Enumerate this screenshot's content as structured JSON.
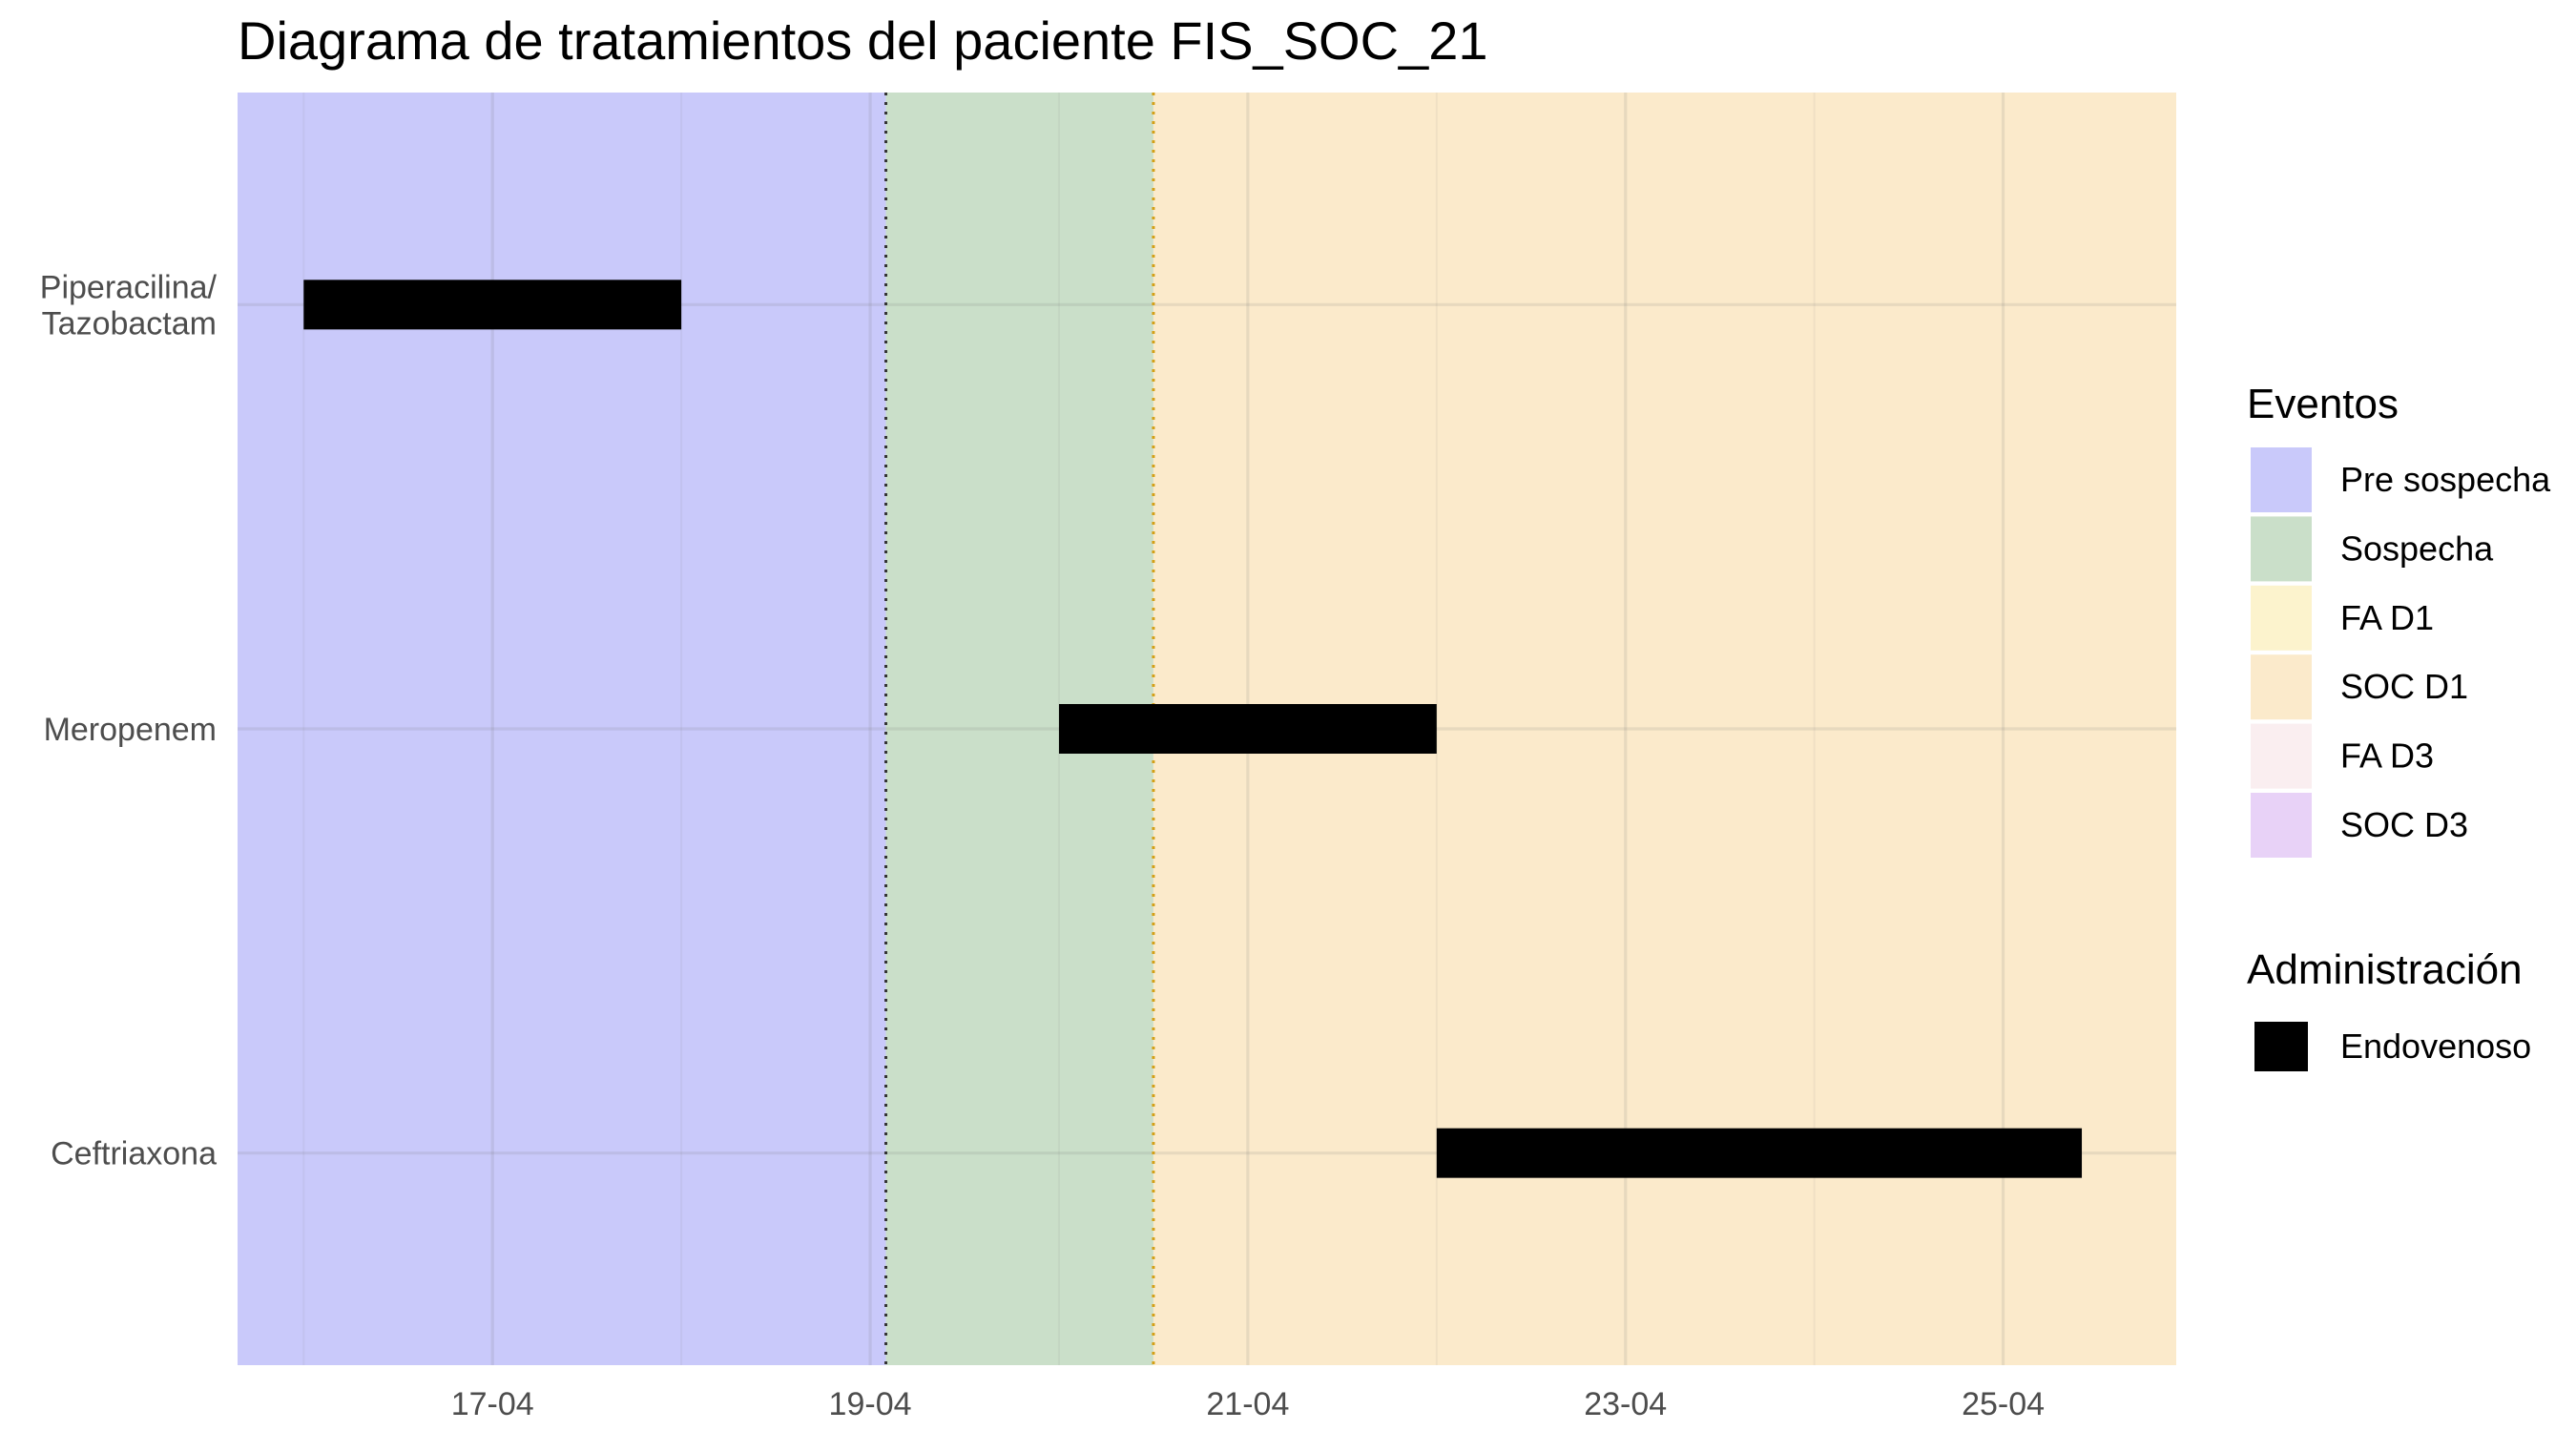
{
  "chart_data": {
    "type": "gantt",
    "title": "Diagrama de tratamientos del paciente FIS_SOC_21",
    "xlabel": "",
    "ylabel": "",
    "x_axis": {
      "range": [
        "2024-04-15T15:36",
        "2024-04-25T22:00"
      ],
      "ticks": [
        {
          "date": "2024-04-17",
          "label": "17-04"
        },
        {
          "date": "2024-04-19",
          "label": "19-04"
        },
        {
          "date": "2024-04-21",
          "label": "21-04"
        },
        {
          "date": "2024-04-23",
          "label": "23-04"
        },
        {
          "date": "2024-04-25",
          "label": "25-04"
        }
      ]
    },
    "categories": [
      "Piperacilina/\nTazobactam",
      "Meropenem",
      "Ceftriaxona"
    ],
    "bars": [
      {
        "category": "Piperacilina/\nTazobactam",
        "start": "2024-04-16T00:00",
        "end": "2024-04-18T00:00",
        "administracion": "Endovenoso"
      },
      {
        "category": "Meropenem",
        "start": "2024-04-20T00:00",
        "end": "2024-04-22T00:00",
        "administracion": "Endovenoso"
      },
      {
        "category": "Ceftriaxona",
        "start": "2024-04-22T00:00",
        "end": "2024-04-25T10:00",
        "administracion": "Endovenoso"
      }
    ],
    "event_periods": [
      {
        "event": "Pre sospecha",
        "start": "2024-04-15T15:36",
        "end": "2024-04-19T02:00"
      },
      {
        "event": "Sospecha",
        "start": "2024-04-19T02:00",
        "end": "2024-04-20T12:00"
      },
      {
        "event": "SOC D1",
        "start": "2024-04-20T12:00",
        "end": "2024-04-25T22:00"
      }
    ],
    "vlines": [
      {
        "date": "2024-04-19T02:00",
        "color": "#333333",
        "style": "dotted"
      },
      {
        "date": "2024-04-20T12:00",
        "color": "#d4a017",
        "style": "dotted"
      }
    ],
    "legends": [
      {
        "title": "Eventos",
        "items": [
          {
            "label": "Pre sospecha",
            "color": "#c9c9fa"
          },
          {
            "label": "Sospecha",
            "color": "#cadfc9"
          },
          {
            "label": "FA D1",
            "color": "#fcf3cd"
          },
          {
            "label": "SOC D1",
            "color": "#fbeacb"
          },
          {
            "label": "FA D3",
            "color": "#faeef0"
          },
          {
            "label": "SOC D3",
            "color": "#e8d2f7"
          }
        ]
      },
      {
        "title": "Administración",
        "items": [
          {
            "label": "Endovenoso",
            "color": "#000000"
          }
        ]
      }
    ],
    "grid": true,
    "legend_position": "right"
  }
}
